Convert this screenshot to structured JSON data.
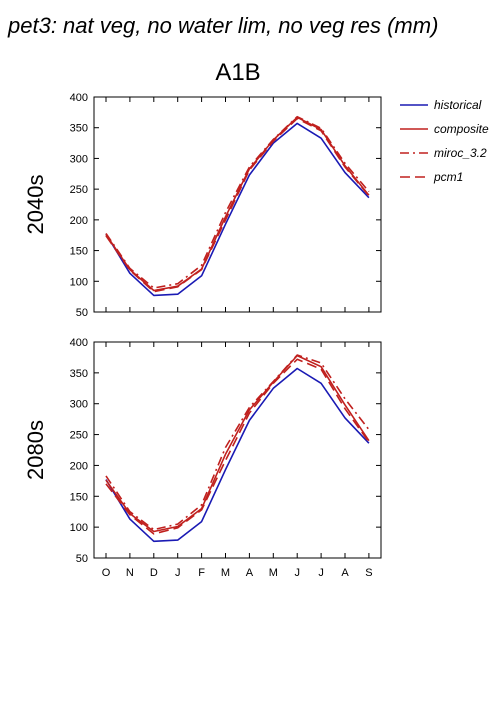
{
  "title": "pet3: nat veg, no water lim, no veg res (mm)",
  "scenario": "A1B",
  "colors": {
    "historical": "#1a1ab4",
    "future": "#c0201e"
  },
  "legend": [
    {
      "name": "historical",
      "style": "solid",
      "color": "#1a1ab4"
    },
    {
      "name": "composite",
      "style": "solid",
      "color": "#c0201e"
    },
    {
      "name": "miroc_3.2",
      "style": "dashdot",
      "color": "#c0201e"
    },
    {
      "name": "pcm1",
      "style": "dashed",
      "color": "#c0201e"
    }
  ],
  "chart_data": [
    {
      "type": "line",
      "row_label": "2040s",
      "categories": [
        "O",
        "N",
        "D",
        "J",
        "F",
        "M",
        "A",
        "M",
        "J",
        "J",
        "A",
        "S"
      ],
      "ylim": [
        50,
        400
      ],
      "yticks": [
        50,
        100,
        150,
        200,
        250,
        300,
        350,
        400
      ],
      "series": [
        {
          "name": "historical",
          "values": [
            177,
            113,
            77,
            79,
            109,
            193,
            273,
            325,
            357,
            333,
            277,
            236
          ]
        },
        {
          "name": "composite",
          "values": [
            176,
            119,
            85,
            92,
            120,
            205,
            283,
            330,
            367,
            347,
            288,
            240
          ]
        },
        {
          "name": "miroc_3.2",
          "values": [
            178,
            121,
            89,
            96,
            126,
            212,
            286,
            331,
            368,
            349,
            292,
            246
          ]
        },
        {
          "name": "pcm1",
          "values": [
            174,
            118,
            83,
            91,
            119,
            200,
            281,
            328,
            365,
            345,
            286,
            239
          ]
        }
      ]
    },
    {
      "type": "line",
      "row_label": "2080s",
      "categories": [
        "O",
        "N",
        "D",
        "J",
        "F",
        "M",
        "A",
        "M",
        "J",
        "J",
        "A",
        "S"
      ],
      "ylim": [
        50,
        400
      ],
      "yticks": [
        50,
        100,
        150,
        200,
        250,
        300,
        350,
        400
      ],
      "series": [
        {
          "name": "historical",
          "values": [
            177,
            113,
            77,
            79,
            109,
            193,
            273,
            325,
            357,
            333,
            277,
            236
          ]
        },
        {
          "name": "composite",
          "values": [
            176,
            122,
            93,
            101,
            130,
            218,
            290,
            335,
            378,
            360,
            298,
            240
          ]
        },
        {
          "name": "miroc_3.2",
          "values": [
            183,
            125,
            96,
            105,
            136,
            229,
            294,
            336,
            379,
            366,
            308,
            258
          ]
        },
        {
          "name": "pcm1",
          "values": [
            170,
            120,
            89,
            99,
            128,
            208,
            285,
            333,
            372,
            356,
            292,
            238
          ]
        }
      ]
    }
  ]
}
